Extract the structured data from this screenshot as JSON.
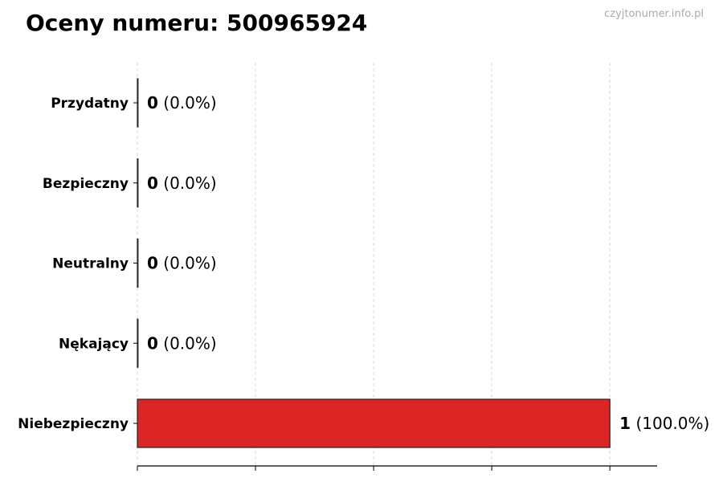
{
  "title": "Oceny numeru: 500965924",
  "watermark": "czyjtonumer.info.pl",
  "chart_data": {
    "type": "bar",
    "orientation": "horizontal",
    "title": "Oceny numeru: 500965924",
    "categories": [
      "Przydatny",
      "Bezpieczny",
      "Neutralny",
      "Nękający",
      "Niebezpieczny"
    ],
    "values": [
      0,
      0,
      0,
      0,
      1
    ],
    "percent_labels": [
      "(0.0%)",
      "(0.0%)",
      "(0.0%)",
      "(0.0%)",
      "(100.0%)"
    ],
    "xlim": [
      0,
      1.1
    ],
    "x_ticks": [
      0,
      0.25,
      0.5,
      0.75,
      1
    ],
    "x_tick_labels_shown": false,
    "grid": "vertical dashed",
    "bar_color": "#dc2626",
    "bar_edge_color": "#222222"
  }
}
